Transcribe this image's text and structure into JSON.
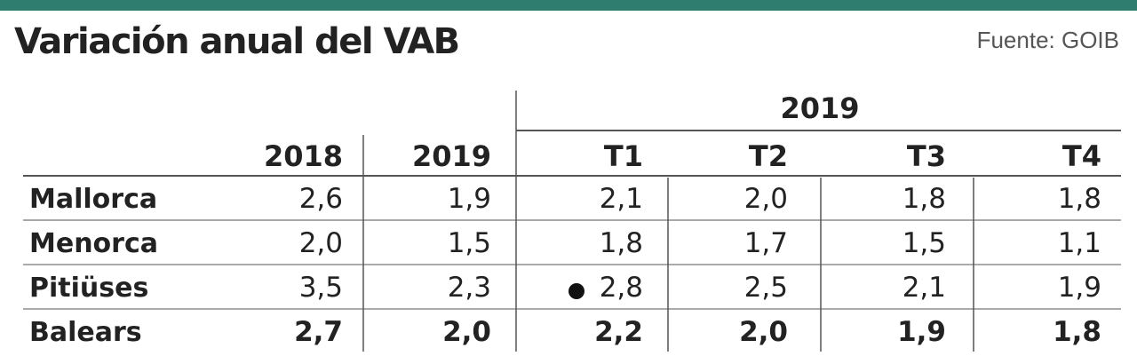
{
  "title": "Variación anual del VAB",
  "source": "Fuente: GOIB",
  "colors": {
    "accent": "#2e7d6e",
    "text": "#222222",
    "rule": "#555555"
  },
  "chart_data": {
    "type": "table",
    "group_header": "2019",
    "columns": [
      "2018",
      "2019",
      "T1",
      "T2",
      "T3",
      "T4"
    ],
    "rows": [
      {
        "label": "Mallorca",
        "values": [
          "2,6",
          "1,9",
          "2,1",
          "2,0",
          "1,8",
          "1,8"
        ],
        "bold": false
      },
      {
        "label": "Menorca",
        "values": [
          "2,0",
          "1,5",
          "1,8",
          "1,7",
          "1,5",
          "1,1"
        ],
        "bold": false
      },
      {
        "label": "Pitiüses",
        "values": [
          "3,5",
          "2,3",
          "2,8",
          "2,5",
          "2,1",
          "1,9"
        ],
        "bold": false
      },
      {
        "label": "Balears",
        "values": [
          "2,7",
          "2,0",
          "2,2",
          "2,0",
          "1,9",
          "1,8"
        ],
        "bold": true
      }
    ]
  }
}
